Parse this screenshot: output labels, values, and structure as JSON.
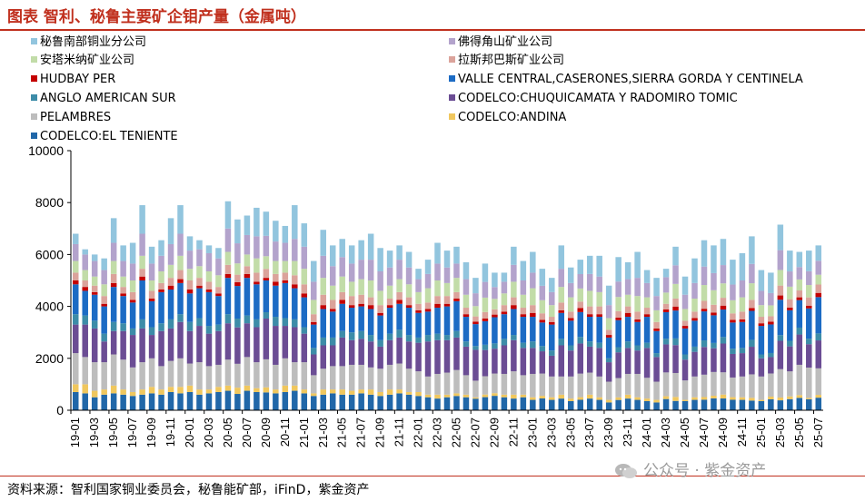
{
  "title": "图表  智利、秘鲁主要矿企钼产量（金属吨）",
  "source": "资料来源：智利国家铜业委员会，秘鲁能矿部，iFinD，紫金资产",
  "watermark": "公众号 · 紫金资产",
  "chart_data": {
    "type": "bar",
    "stacked": true,
    "ylim": [
      0,
      10000
    ],
    "yticks": [
      0,
      2000,
      4000,
      6000,
      8000,
      10000
    ],
    "tick_labels": [
      "19-01",
      "19-03",
      "19-05",
      "19-07",
      "19-09",
      "19-11",
      "20-01",
      "20-03",
      "20-05",
      "20-07",
      "20-09",
      "20-11",
      "21-01",
      "21-03",
      "21-05",
      "21-07",
      "21-09",
      "21-11",
      "22-01",
      "22-03",
      "22-05",
      "22-07",
      "22-09",
      "22-11",
      "23-01",
      "23-03",
      "23-05",
      "23-07",
      "23-09",
      "23-11",
      "24-01",
      "24-03",
      "24-05",
      "24-07",
      "24-09",
      "24-11",
      "25-01",
      "25-03",
      "25-05",
      "25-07"
    ],
    "categories": [
      "19-01",
      "19-02",
      "19-03",
      "19-04",
      "19-05",
      "19-06",
      "19-07",
      "19-08",
      "19-09",
      "19-10",
      "19-11",
      "19-12",
      "20-01",
      "20-02",
      "20-03",
      "20-04",
      "20-05",
      "20-06",
      "20-07",
      "20-08",
      "20-09",
      "20-10",
      "20-11",
      "20-12",
      "21-01",
      "21-02",
      "21-03",
      "21-04",
      "21-05",
      "21-06",
      "21-07",
      "21-08",
      "21-09",
      "21-10",
      "21-11",
      "21-12",
      "22-01",
      "22-02",
      "22-03",
      "22-04",
      "22-05",
      "22-06",
      "22-07",
      "22-08",
      "22-09",
      "22-10",
      "22-11",
      "22-12",
      "23-01",
      "23-02",
      "23-03",
      "23-04",
      "23-05",
      "23-06",
      "23-07",
      "23-08",
      "23-09",
      "23-10",
      "23-11",
      "23-12",
      "24-01",
      "24-02",
      "24-03",
      "24-04",
      "24-05",
      "24-06",
      "24-07",
      "24-08",
      "24-09",
      "24-10",
      "24-11",
      "24-12",
      "25-01",
      "25-02",
      "25-03",
      "25-04",
      "25-05",
      "25-06",
      "25-07"
    ],
    "legend": [
      {
        "name": "秘鲁南部铜业分公司",
        "color": "#92c5de"
      },
      {
        "name": "佛得角山矿业公司",
        "color": "#b3a3cc"
      },
      {
        "name": "安塔米纳矿业公司",
        "color": "#c2dca8"
      },
      {
        "name": "拉斯邦巴斯矿业公司",
        "color": "#dba39b"
      },
      {
        "name": "HUDBAY PER",
        "color": "#c40000"
      },
      {
        "name": "VALLE CENTRAL,CASERONES,SIERRA GORDA Y CENTINELA",
        "color": "#1c6bc4"
      },
      {
        "name": "ANGLO AMERICAN SUR",
        "color": "#3d8ca8"
      },
      {
        "name": "CODELCO:CHUQUICAMATA Y RADOMIRO TOMIC",
        "color": "#6b4d94"
      },
      {
        "name": "PELAMBRES",
        "color": "#bdbdbd"
      },
      {
        "name": "CODELCO:ANDINA",
        "color": "#f0c75e"
      },
      {
        "name": "CODELCO:EL TENIENTE",
        "color": "#2167a8"
      }
    ],
    "stack_order": [
      "CODELCO:EL TENIENTE",
      "CODELCO:ANDINA",
      "PELAMBRES",
      "CODELCO:CHUQUICAMATA Y RADOMIRO TOMIC",
      "ANGLO AMERICAN SUR",
      "VALLE CENTRAL,CASERONES,SIERRA GORDA Y CENTINELA",
      "HUDBAY PER",
      "拉斯邦巴斯矿业公司",
      "安塔米纳矿业公司",
      "佛得角山矿业公司",
      "秘鲁南部铜业分公司"
    ],
    "totals": [
      6800,
      6200,
      6000,
      5850,
      7400,
      6350,
      6450,
      7900,
      6300,
      6550,
      7400,
      7900,
      6700,
      6550,
      6350,
      6250,
      8050,
      7350,
      7500,
      7800,
      7650,
      7300,
      7100,
      7900,
      7200,
      5750,
      6950,
      6350,
      6600,
      6350,
      6550,
      6800,
      6250,
      6150,
      6350,
      6100,
      5450,
      5800,
      6450,
      6150,
      6300,
      5700,
      5100,
      5650,
      5300,
      5300,
      6300,
      5750,
      6100,
      5450,
      5100,
      6350,
      5500,
      5800,
      5950,
      5950,
      4800,
      5900,
      5700,
      6100,
      5400,
      5100,
      5450,
      6300,
      5150,
      5850,
      6550,
      6350,
      6600,
      5800,
      6050,
      6700,
      5400,
      5300,
      7150,
      6150,
      6100,
      6150,
      6350
    ],
    "values": {
      "CODELCO:EL TENIENTE": [
        700,
        650,
        500,
        600,
        650,
        600,
        550,
        600,
        650,
        600,
        700,
        650,
        700,
        600,
        650,
        700,
        750,
        650,
        750,
        700,
        700,
        650,
        700,
        750,
        650,
        550,
        600,
        650,
        600,
        600,
        650,
        600,
        550,
        600,
        650,
        600,
        550,
        500,
        450,
        500,
        550,
        500,
        450,
        500,
        550,
        500,
        450,
        500,
        400,
        450,
        400,
        450,
        350,
        400,
        450,
        400,
        300,
        400,
        450,
        400,
        350,
        300,
        400,
        350,
        350,
        400,
        400,
        450,
        450,
        400,
        400,
        350,
        350,
        400,
        350,
        400,
        450,
        400,
        450
      ],
      "CODELCO:ANDINA": [
        300,
        350,
        250,
        200,
        300,
        200,
        150,
        200,
        250,
        200,
        200,
        250,
        250,
        200,
        150,
        200,
        200,
        250,
        200,
        150,
        200,
        150,
        250,
        200,
        150,
        100,
        200,
        150,
        200,
        150,
        150,
        200,
        150,
        200,
        150,
        100,
        150,
        100,
        150,
        100,
        100,
        100,
        50,
        100,
        100,
        100,
        150,
        100,
        100,
        100,
        100,
        150,
        100,
        100,
        150,
        100,
        100,
        100,
        150,
        100,
        100,
        100,
        100,
        150,
        50,
        100,
        100,
        100,
        150,
        100,
        100,
        100,
        50,
        100,
        100,
        100,
        100,
        50,
        100
      ],
      "PELAMBRES": [
        1200,
        1050,
        1100,
        1050,
        1200,
        1150,
        950,
        1050,
        1100,
        900,
        1000,
        1100,
        850,
        1050,
        900,
        850,
        1000,
        950,
        1100,
        1000,
        1100,
        950,
        1050,
        900,
        1050,
        700,
        800,
        900,
        900,
        1000,
        950,
        850,
        900,
        950,
        1000,
        900,
        800,
        700,
        800,
        850,
        900,
        750,
        650,
        700,
        750,
        800,
        900,
        750,
        900,
        850,
        800,
        700,
        850,
        900,
        850,
        800,
        700,
        750,
        800,
        900,
        800,
        700,
        850,
        900,
        750,
        800,
        850,
        900,
        850,
        750,
        800,
        850,
        900,
        850,
        1000,
        900,
        1100,
        1100,
        950
      ],
      "CODELCO:CHUQUICAMATA Y RADOMIRO TOMIC": [
        1100,
        1250,
        1300,
        800,
        900,
        1100,
        1250,
        1300,
        900,
        1350,
        1250,
        1400,
        1250,
        1400,
        1250,
        1300,
        1400,
        1450,
        1300,
        1350,
        1600,
        1500,
        1250,
        1350,
        1100,
        800,
        900,
        800,
        1100,
        950,
        1000,
        1000,
        850,
        950,
        1000,
        1050,
        1100,
        1350,
        1300,
        1250,
        1250,
        1100,
        1200,
        1000,
        950,
        1100,
        1200,
        1050,
        1000,
        850,
        800,
        1200,
        1000,
        1150,
        1000,
        1100,
        750,
        1000,
        1000,
        900,
        1150,
        950,
        1000,
        1050,
        800,
        950,
        1050,
        900,
        1100,
        900,
        900,
        1000,
        700,
        600,
        1000,
        900,
        1100,
        850,
        1000
      ],
      "ANGLO AMERICAN SUR": [
        400,
        350,
        300,
        300,
        350,
        300,
        250,
        350,
        300,
        300,
        350,
        300,
        350,
        300,
        300,
        250,
        350,
        350,
        300,
        300,
        250,
        350,
        300,
        300,
        250,
        250,
        300,
        300,
        250,
        300,
        300,
        250,
        250,
        250,
        300,
        250,
        200,
        250,
        250,
        200,
        250,
        200,
        150,
        200,
        200,
        250,
        200,
        200,
        250,
        200,
        200,
        250,
        200,
        250,
        200,
        200,
        150,
        200,
        250,
        200,
        200,
        150,
        200,
        250,
        200,
        200,
        250,
        200,
        250,
        200,
        200,
        250,
        150,
        150,
        200,
        200,
        250,
        200,
        250
      ],
      "VALLE CENTRAL,CASERONES,SIERRA GORDA Y CENTINELA": [
        1150,
        950,
        1000,
        1050,
        1350,
        1050,
        1000,
        1500,
        1000,
        1200,
        1150,
        1200,
        1100,
        1150,
        1300,
        1100,
        1400,
        1300,
        1450,
        1350,
        1250,
        1200,
        1350,
        1200,
        1150,
        900,
        1100,
        1000,
        1050,
        950,
        950,
        1000,
        950,
        1000,
        1000,
        1050,
        950,
        900,
        1000,
        1100,
        1150,
        950,
        850,
        900,
        1000,
        950,
        1000,
        1000,
        950,
        900,
        1000,
        1000,
        950,
        950,
        950,
        1000,
        800,
        1050,
        950,
        900,
        1000,
        850,
        950,
        1050,
        1000,
        1000,
        1100,
        1050,
        1050,
        1000,
        1000,
        1050,
        1100,
        1050,
        1250,
        1100,
        1000,
        1100,
        1300
      ],
      "HUDBAY PER": [
        150,
        150,
        100,
        100,
        150,
        100,
        100,
        150,
        100,
        100,
        150,
        150,
        150,
        100,
        100,
        100,
        150,
        150,
        150,
        100,
        100,
        150,
        100,
        150,
        150,
        100,
        150,
        100,
        150,
        100,
        100,
        150,
        100,
        100,
        150,
        100,
        100,
        100,
        150,
        100,
        100,
        100,
        100,
        100,
        100,
        100,
        150,
        100,
        150,
        100,
        100,
        100,
        100,
        150,
        100,
        100,
        100,
        100,
        150,
        100,
        100,
        100,
        100,
        150,
        100,
        100,
        100,
        100,
        150,
        100,
        100,
        100,
        100,
        100,
        150,
        100,
        100,
        100,
        150
      ],
      "拉斯邦巴斯矿业公司": [
        300,
        250,
        250,
        300,
        350,
        250,
        300,
        300,
        300,
        250,
        300,
        350,
        350,
        300,
        300,
        250,
        350,
        300,
        300,
        350,
        350,
        300,
        300,
        350,
        350,
        300,
        400,
        350,
        300,
        350,
        350,
        300,
        300,
        250,
        300,
        300,
        250,
        250,
        300,
        300,
        250,
        250,
        200,
        250,
        200,
        250,
        300,
        250,
        300,
        250,
        200,
        300,
        250,
        250,
        300,
        300,
        200,
        250,
        250,
        300,
        250,
        250,
        200,
        300,
        200,
        250,
        300,
        300,
        300,
        250,
        300,
        300,
        250,
        200,
        350,
        300,
        250,
        300,
        300
      ],
      "安塔米纳矿业公司": [
        450,
        400,
        350,
        450,
        500,
        400,
        450,
        500,
        400,
        450,
        500,
        550,
        450,
        450,
        400,
        450,
        500,
        450,
        450,
        550,
        500,
        500,
        450,
        550,
        600,
        550,
        650,
        550,
        600,
        550,
        600,
        650,
        550,
        500,
        500,
        500,
        450,
        550,
        600,
        500,
        550,
        500,
        400,
        550,
        400,
        450,
        600,
        500,
        650,
        500,
        450,
        600,
        550,
        500,
        600,
        550,
        450,
        550,
        450,
        600,
        400,
        450,
        400,
        550,
        450,
        500,
        600,
        550,
        550,
        500,
        550,
        600,
        450,
        400,
        550,
        450,
        400,
        450,
        350
      ],
      "佛得角山矿业公司": [
        650,
        600,
        600,
        550,
        700,
        600,
        650,
        850,
        650,
        600,
        800,
        850,
        700,
        650,
        700,
        650,
        900,
        800,
        750,
        850,
        800,
        750,
        700,
        850,
        850,
        700,
        850,
        750,
        750,
        700,
        750,
        800,
        750,
        700,
        750,
        650,
        500,
        550,
        650,
        600,
        550,
        600,
        500,
        600,
        450,
        450,
        650,
        550,
        600,
        550,
        500,
        700,
        550,
        550,
        650,
        600,
        500,
        600,
        600,
        700,
        550,
        550,
        550,
        700,
        550,
        600,
        700,
        650,
        700,
        600,
        650,
        700,
        550,
        450,
        700,
        550,
        450,
        500,
        500
      ],
      "秘鲁南部铜业分公司": [
        400,
        200,
        250,
        450,
        950,
        600,
        800,
        1100,
        650,
        600,
        1000,
        1100,
        550,
        350,
        300,
        400,
        1050,
        950,
        750,
        1100,
        950,
        800,
        650,
        1300,
        900,
        800,
        1000,
        800,
        700,
        700,
        750,
        1000,
        900,
        650,
        550,
        600,
        400,
        550,
        800,
        650,
        650,
        650,
        600,
        700,
        550,
        350,
        700,
        750,
        800,
        650,
        550,
        900,
        600,
        550,
        700,
        800,
        750,
        950,
        650,
        1000,
        500,
        700,
        300,
        700,
        700,
        950,
        1000,
        1050,
        1000,
        950,
        1050,
        1000,
        800,
        750,
        900,
        750,
        550,
        750,
        550
      ]
    }
  }
}
